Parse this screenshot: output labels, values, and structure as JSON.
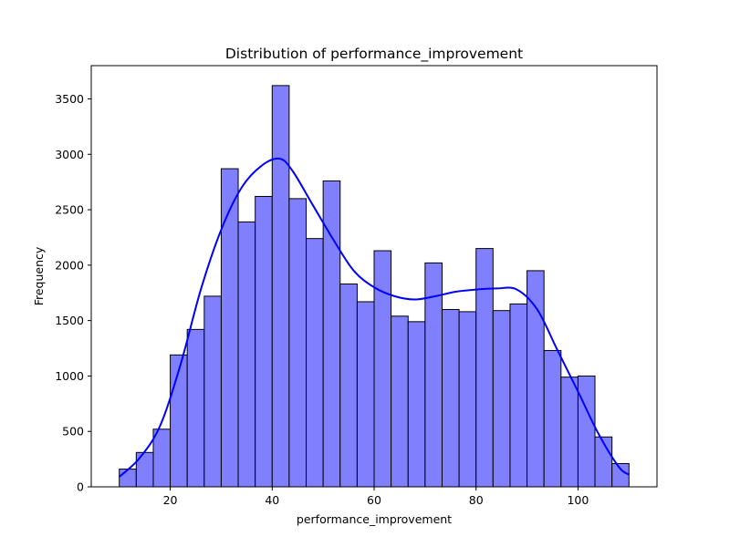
{
  "chart_data": {
    "type": "bar",
    "title": "Distribution of performance_improvement",
    "xlabel": "performance_improvement",
    "ylabel": "Frequency",
    "xlim": [
      4.5,
      115.5
    ],
    "ylim": [
      0,
      3800
    ],
    "x_ticks": [
      20,
      40,
      60,
      80,
      100
    ],
    "y_ticks": [
      0,
      500,
      1000,
      1500,
      2000,
      2500,
      3000,
      3500
    ],
    "bin_edges": [
      10,
      13.33,
      16.67,
      20,
      23.33,
      26.67,
      30,
      33.33,
      36.67,
      40,
      43.33,
      46.67,
      50,
      53.33,
      56.67,
      60,
      63.33,
      66.67,
      70,
      73.33,
      76.67,
      80,
      83.33,
      86.67,
      90,
      93.33,
      96.67,
      100,
      103.33,
      106.67,
      110
    ],
    "values": [
      160,
      310,
      520,
      1190,
      1420,
      1720,
      2870,
      2390,
      2620,
      3620,
      2600,
      2240,
      2760,
      1830,
      1670,
      2130,
      1540,
      1490,
      2020,
      1600,
      1580,
      2150,
      1590,
      1650,
      1950,
      1230,
      990,
      1000,
      450,
      210
    ],
    "bar_color": "#8080ff",
    "bar_edge_color": "#000000",
    "kde": {
      "color": "#0000ff",
      "x": [
        10,
        14,
        18,
        22,
        26,
        30,
        34,
        38,
        41.5,
        44,
        48,
        52,
        56,
        60,
        64,
        68,
        72,
        76,
        80,
        84,
        88,
        92,
        96,
        100,
        104,
        108,
        110
      ],
      "y": [
        90,
        260,
        550,
        1100,
        1780,
        2320,
        2700,
        2900,
        2960,
        2850,
        2540,
        2230,
        1950,
        1800,
        1720,
        1690,
        1720,
        1760,
        1780,
        1790,
        1780,
        1600,
        1230,
        860,
        480,
        180,
        110
      ]
    },
    "grid": false,
    "legend": "none"
  }
}
